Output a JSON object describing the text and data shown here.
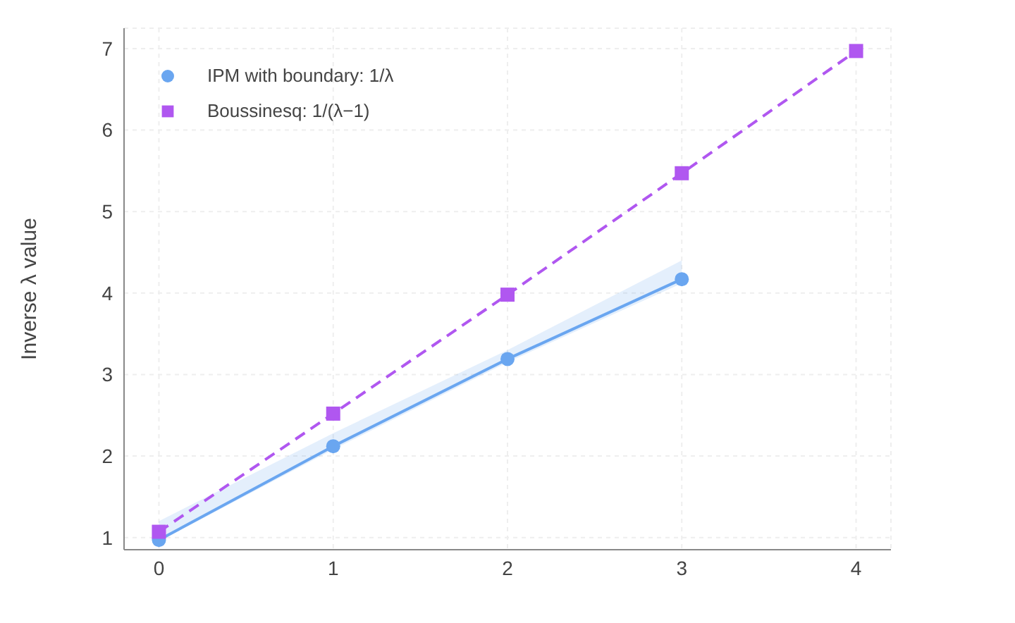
{
  "chart_data": {
    "type": "line",
    "ylabel": "Inverse λ value",
    "x": [
      0,
      1,
      2,
      3,
      4
    ],
    "xlim": [
      -0.2,
      4.2
    ],
    "xticks": [
      0,
      1,
      2,
      3,
      4
    ],
    "ylim": [
      0.85,
      7.25
    ],
    "yticks": [
      1,
      2,
      3,
      4,
      5,
      6,
      7
    ],
    "grid": true,
    "legend": "top left",
    "series": [
      {
        "name": "IPM with boundary: 1/λ",
        "color": "#6aa6f0",
        "marker": "circle",
        "line_style": "solid",
        "values": [
          0.97,
          2.12,
          3.19,
          4.17,
          null
        ],
        "lower": [
          0.95,
          2.08,
          3.15,
          4.12,
          null
        ],
        "upper": [
          1.2,
          2.28,
          3.3,
          4.4,
          null
        ]
      },
      {
        "name": "Boussinesq: 1/(λ−1)",
        "color": "#b057f0",
        "marker": "square",
        "line_style": "dashed",
        "values": [
          1.07,
          2.52,
          3.98,
          5.47,
          6.97
        ]
      }
    ]
  }
}
